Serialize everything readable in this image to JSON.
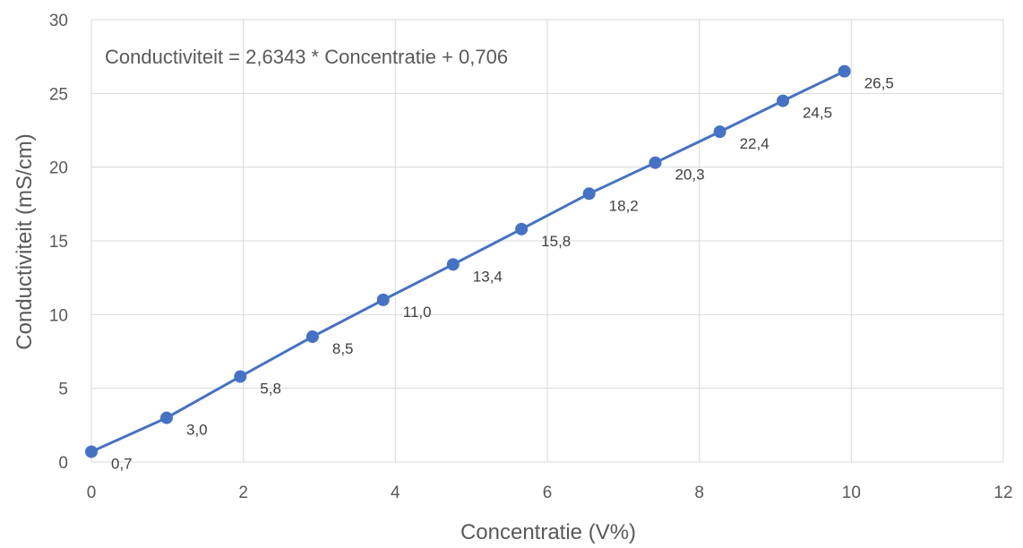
{
  "chart_data": {
    "type": "scatter",
    "equation": "Conductiviteit = 2,6343 * Concentratie + 0,706",
    "xlabel": "Concentratie (V%)",
    "ylabel": "Conductiviteit (mS/cm)",
    "xlim": [
      0,
      12
    ],
    "ylim": [
      0,
      30
    ],
    "x_ticks": [
      0,
      2,
      4,
      6,
      8,
      10,
      12
    ],
    "y_ticks": [
      0,
      5,
      10,
      15,
      20,
      25,
      30
    ],
    "x_tick_labels": [
      "0",
      "2",
      "4",
      "6",
      "8",
      "10",
      "12"
    ],
    "y_tick_labels": [
      "0",
      "5",
      "10",
      "15",
      "20",
      "25",
      "30"
    ],
    "grid": true,
    "legend": "none",
    "series": [
      {
        "color": "#4472c4",
        "x": [
          0,
          0.99,
          1.96,
          2.91,
          3.84,
          4.76,
          5.66,
          6.55,
          7.42,
          8.27,
          9.1,
          9.91
        ],
        "y": [
          0.7,
          3.0,
          5.8,
          8.5,
          11.0,
          13.4,
          15.8,
          18.2,
          20.3,
          22.4,
          24.5,
          26.5
        ],
        "labels": [
          "0,7",
          "3,0",
          "5,8",
          "8,5",
          "11,0",
          "13,4",
          "15,8",
          "18,2",
          "20,3",
          "22,4",
          "24,5",
          "26,5"
        ]
      }
    ]
  }
}
